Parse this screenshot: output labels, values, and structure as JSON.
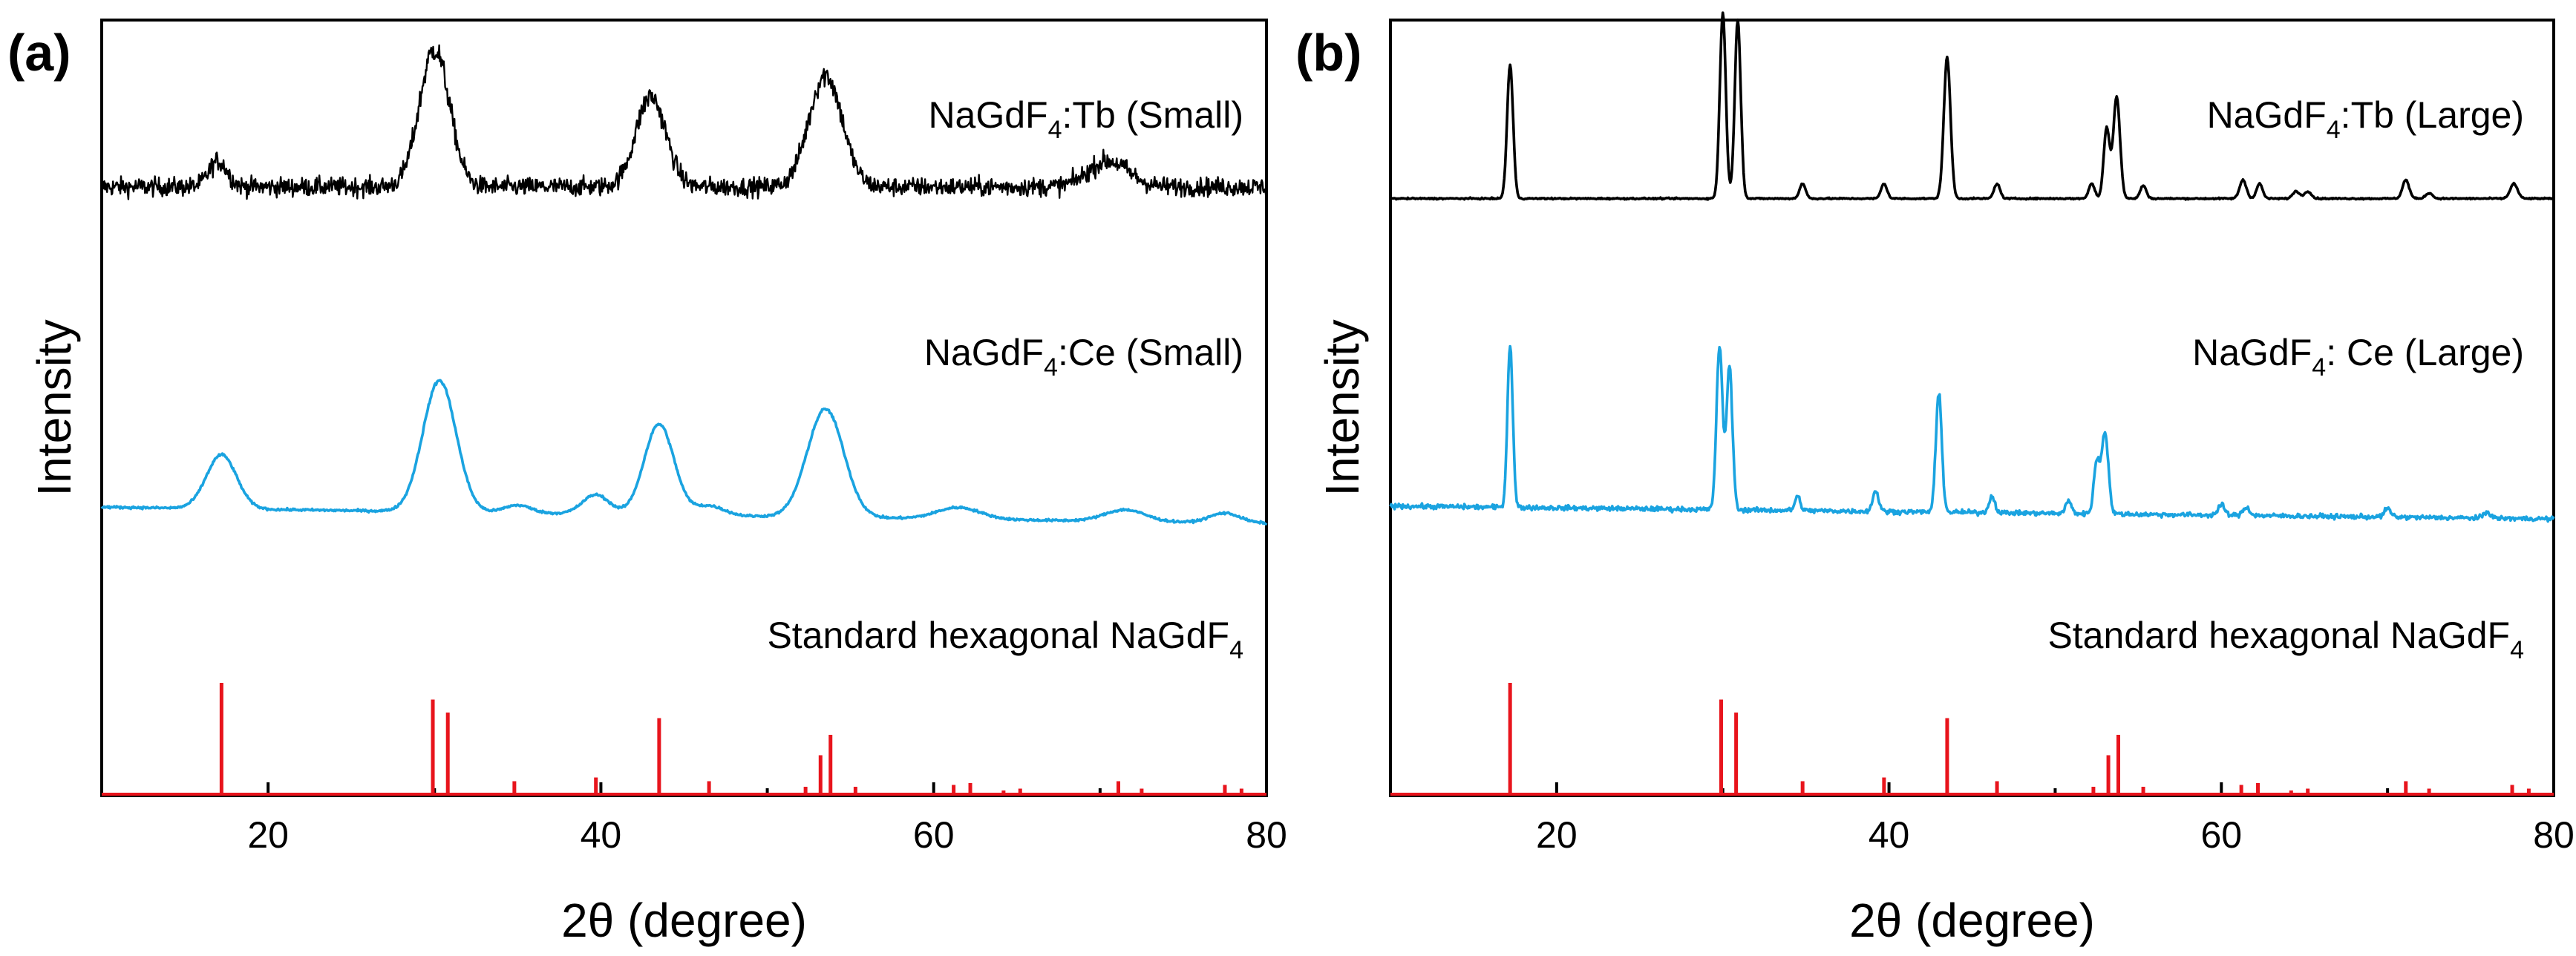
{
  "chart_data": [
    {
      "type": "line",
      "panel_label": "(a)",
      "xlabel": "2θ (degree)",
      "ylabel": "Intensity",
      "xlim": [
        10,
        80
      ],
      "xticks": [
        20,
        40,
        60,
        80
      ],
      "grid": false,
      "series": [
        {
          "name": "NaGdF4:Tb (Small)",
          "label_main": "NaGdF",
          "label_sub": "4",
          "label_rest": ":Tb (Small)",
          "color": "#000000",
          "kind": "noisy-pattern",
          "baseline": 0.58,
          "noise": 0.045,
          "slope": 0.0,
          "peaks": [
            [
              17,
              0.12,
              0.55
            ],
            [
              30,
              0.64,
              0.9
            ],
            [
              43,
              0.42,
              0.9
            ],
            [
              53.5,
              0.52,
              1.0
            ],
            [
              70.5,
              0.12,
              1.2
            ]
          ]
        },
        {
          "name": "NaGdF4:Ce (Small)",
          "label_main": "NaGdF",
          "label_sub": "4",
          "label_rest": ":Ce (Small)",
          "color": "#1aa3e0",
          "kind": "noisy-pattern",
          "baseline": 0.18,
          "noise": 0.006,
          "slope": -0.0012,
          "peaks": [
            [
              17.2,
              0.28,
              0.9
            ],
            [
              30.3,
              0.68,
              1.0
            ],
            [
              35,
              0.04,
              0.8
            ],
            [
              39.7,
              0.1,
              0.8
            ],
            [
              43.5,
              0.47,
              0.9
            ],
            [
              46.5,
              0.05,
              0.9
            ],
            [
              53.5,
              0.56,
              1.1
            ],
            [
              61.5,
              0.06,
              1.3
            ],
            [
              71.5,
              0.06,
              1.2
            ],
            [
              77.5,
              0.05,
              0.9
            ]
          ]
        },
        {
          "name": "Standard hexagonal NaGdF4",
          "label_main": "Standard hexagonal NaGdF",
          "label_sub": "4",
          "label_rest": "",
          "color": "#e8141c",
          "kind": "sticks",
          "baseline": 0.0,
          "peaks": [
            [
              17.2,
              0.6
            ],
            [
              29.9,
              0.51
            ],
            [
              30.8,
              0.44
            ],
            [
              34.8,
              0.07
            ],
            [
              39.7,
              0.09
            ],
            [
              43.5,
              0.41
            ],
            [
              46.5,
              0.07
            ],
            [
              52.3,
              0.04
            ],
            [
              53.2,
              0.21
            ],
            [
              53.8,
              0.32
            ],
            [
              55.3,
              0.04
            ],
            [
              61.2,
              0.05
            ],
            [
              62.2,
              0.06
            ],
            [
              64.2,
              0.02
            ],
            [
              65.2,
              0.03
            ],
            [
              71.1,
              0.07
            ],
            [
              72.5,
              0.03
            ],
            [
              77.5,
              0.05
            ],
            [
              78.5,
              0.03
            ]
          ]
        }
      ]
    },
    {
      "type": "line",
      "panel_label": "(b)",
      "xlabel": "2θ (degree)",
      "ylabel": "Intensity",
      "xlim": [
        10,
        80
      ],
      "xticks": [
        20,
        40,
        60,
        80
      ],
      "grid": false,
      "series": [
        {
          "name": "NaGdF4:Tb (Large)",
          "label_main": "NaGdF",
          "label_sub": "4",
          "label_rest": ":Tb (Large)",
          "color": "#000000",
          "kind": "noisy-pattern",
          "baseline": 0.45,
          "noise": 0.004,
          "slope": 0.0,
          "peaks": [
            [
              17.2,
              0.72,
              0.18
            ],
            [
              30.0,
              1.0,
              0.18
            ],
            [
              30.9,
              0.96,
              0.18
            ],
            [
              34.8,
              0.08,
              0.18
            ],
            [
              39.7,
              0.08,
              0.18
            ],
            [
              43.5,
              0.76,
              0.2
            ],
            [
              46.5,
              0.08,
              0.18
            ],
            [
              52.2,
              0.08,
              0.18
            ],
            [
              53.1,
              0.38,
              0.18
            ],
            [
              53.7,
              0.55,
              0.2
            ],
            [
              55.3,
              0.07,
              0.18
            ],
            [
              61.3,
              0.1,
              0.2
            ],
            [
              62.3,
              0.08,
              0.18
            ],
            [
              64.5,
              0.04,
              0.2
            ],
            [
              65.2,
              0.04,
              0.2
            ],
            [
              71.1,
              0.1,
              0.2
            ],
            [
              72.5,
              0.03,
              0.2
            ],
            [
              77.6,
              0.08,
              0.22
            ]
          ]
        },
        {
          "name": "NaGdF4: Ce (Large)",
          "label_main": "NaGdF",
          "label_sub": "4",
          "label_rest": ": Ce (Large)",
          "color": "#1aa3e0",
          "kind": "noisy-pattern",
          "baseline": 0.23,
          "noise": 0.012,
          "slope": -0.0009,
          "peaks": [
            [
              17.2,
              0.8,
              0.16
            ],
            [
              29.8,
              0.8,
              0.18
            ],
            [
              30.4,
              0.7,
              0.18
            ],
            [
              34.5,
              0.07,
              0.16
            ],
            [
              39.2,
              0.1,
              0.18
            ],
            [
              43.0,
              0.58,
              0.18
            ],
            [
              46.2,
              0.08,
              0.18
            ],
            [
              50.8,
              0.06,
              0.18
            ],
            [
              52.5,
              0.25,
              0.18
            ],
            [
              53.0,
              0.4,
              0.2
            ],
            [
              60.0,
              0.05,
              0.2
            ],
            [
              61.5,
              0.04,
              0.2
            ],
            [
              70.0,
              0.04,
              0.2
            ],
            [
              76.0,
              0.03,
              0.2
            ]
          ]
        },
        {
          "name": "Standard hexagonal NaGdF4",
          "label_main": "Standard hexagonal NaGdF",
          "label_sub": "4",
          "label_rest": "",
          "color": "#e8141c",
          "kind": "sticks",
          "baseline": 0.0,
          "peaks": [
            [
              17.2,
              0.6
            ],
            [
              29.9,
              0.51
            ],
            [
              30.8,
              0.44
            ],
            [
              34.8,
              0.07
            ],
            [
              39.7,
              0.09
            ],
            [
              43.5,
              0.41
            ],
            [
              46.5,
              0.07
            ],
            [
              52.3,
              0.04
            ],
            [
              53.2,
              0.21
            ],
            [
              53.8,
              0.32
            ],
            [
              55.3,
              0.04
            ],
            [
              61.2,
              0.05
            ],
            [
              62.2,
              0.06
            ],
            [
              64.2,
              0.02
            ],
            [
              65.2,
              0.03
            ],
            [
              71.1,
              0.07
            ],
            [
              72.5,
              0.03
            ],
            [
              77.5,
              0.05
            ],
            [
              78.5,
              0.03
            ]
          ]
        }
      ]
    }
  ]
}
